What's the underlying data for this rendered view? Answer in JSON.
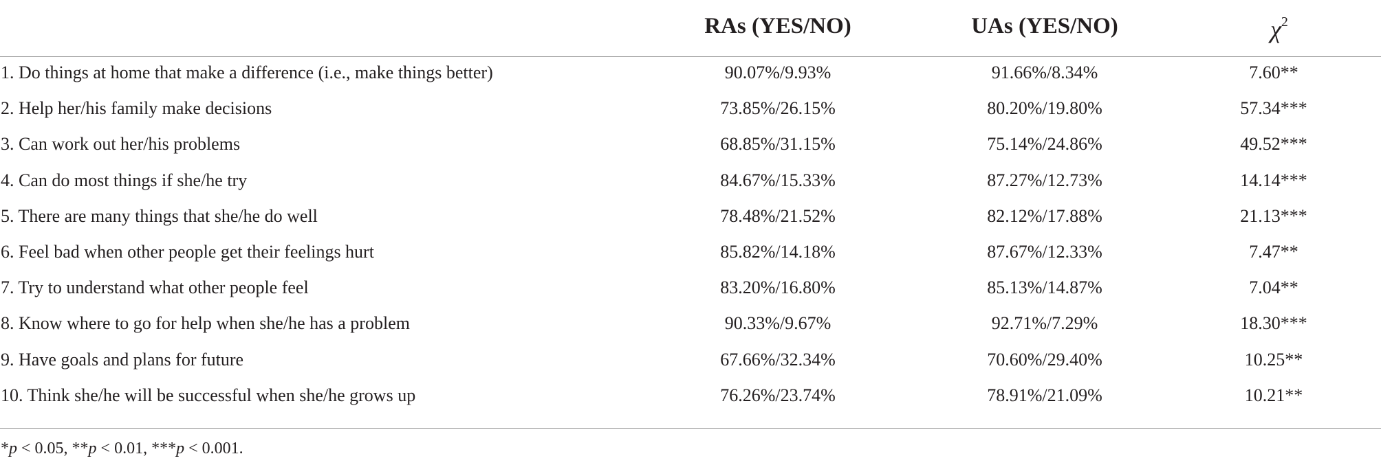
{
  "table": {
    "headers": {
      "item": "",
      "ras": "RAs (YES/NO)",
      "uas": "UAs (YES/NO)",
      "chi_symbol": "χ",
      "chi_superscript": "2"
    },
    "rows": [
      {
        "item": "1. Do things at home that make a difference (i.e., make things better)",
        "ras": "90.07%/9.93%",
        "uas": "91.66%/8.34%",
        "chi": "7.60**"
      },
      {
        "item": "2. Help her/his family make decisions",
        "ras": "73.85%/26.15%",
        "uas": "80.20%/19.80%",
        "chi": "57.34***"
      },
      {
        "item": "3. Can work out her/his problems",
        "ras": "68.85%/31.15%",
        "uas": "75.14%/24.86%",
        "chi": "49.52***"
      },
      {
        "item": "4. Can do most things if she/he try",
        "ras": "84.67%/15.33%",
        "uas": "87.27%/12.73%",
        "chi": "14.14***"
      },
      {
        "item": "5. There are many things that she/he do well",
        "ras": "78.48%/21.52%",
        "uas": "82.12%/17.88%",
        "chi": "21.13***"
      },
      {
        "item": "6. Feel bad when other people get their feelings hurt",
        "ras": "85.82%/14.18%",
        "uas": "87.67%/12.33%",
        "chi": "7.47**"
      },
      {
        "item": "7. Try to understand what other people feel",
        "ras": "83.20%/16.80%",
        "uas": "85.13%/14.87%",
        "chi": "7.04**"
      },
      {
        "item": "8. Know where to go for help when she/he has a problem",
        "ras": "90.33%/9.67%",
        "uas": "92.71%/7.29%",
        "chi": "18.30***"
      },
      {
        "item": "9. Have goals and plans for future",
        "ras": "67.66%/32.34%",
        "uas": "70.60%/29.40%",
        "chi": "10.25**"
      },
      {
        "item": "10. Think she/he will be successful when she/he grows up",
        "ras": "76.26%/23.74%",
        "uas": "78.91%/21.09%",
        "chi": "10.21**"
      }
    ]
  },
  "footnote": {
    "parts": [
      {
        "text": "*",
        "italic": false
      },
      {
        "text": "p",
        "italic": true
      },
      {
        "text": " < 0.05, **",
        "italic": false
      },
      {
        "text": "p",
        "italic": true
      },
      {
        "text": " < 0.01, ***",
        "italic": false
      },
      {
        "text": "p",
        "italic": true
      },
      {
        "text": " < 0.001.",
        "italic": false
      }
    ]
  }
}
